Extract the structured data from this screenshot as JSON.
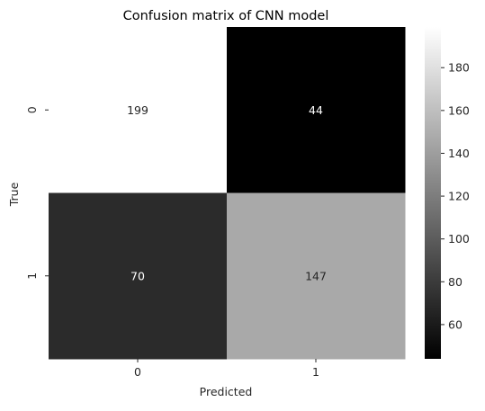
{
  "chart_data": {
    "type": "heatmap",
    "title": "Confusion matrix of CNN model",
    "xlabel": "Predicted",
    "ylabel": "True",
    "x_categories": [
      "0",
      "1"
    ],
    "y_categories": [
      "0",
      "1"
    ],
    "matrix": [
      [
        199,
        44
      ],
      [
        70,
        147
      ]
    ],
    "value_labels": [
      [
        "199",
        "44"
      ],
      [
        "70",
        "147"
      ]
    ],
    "colormap": "gray",
    "colorbar": {
      "min": 44,
      "max": 199,
      "ticks": [
        60,
        80,
        100,
        120,
        140,
        160,
        180
      ],
      "tick_labels": [
        "60",
        "80",
        "100",
        "120",
        "140",
        "160",
        "180"
      ]
    }
  },
  "colors": {
    "background": "#ffffff",
    "text_on_dark": "#ffffff",
    "text_on_light": "#262626",
    "axis_text": "#262626"
  }
}
